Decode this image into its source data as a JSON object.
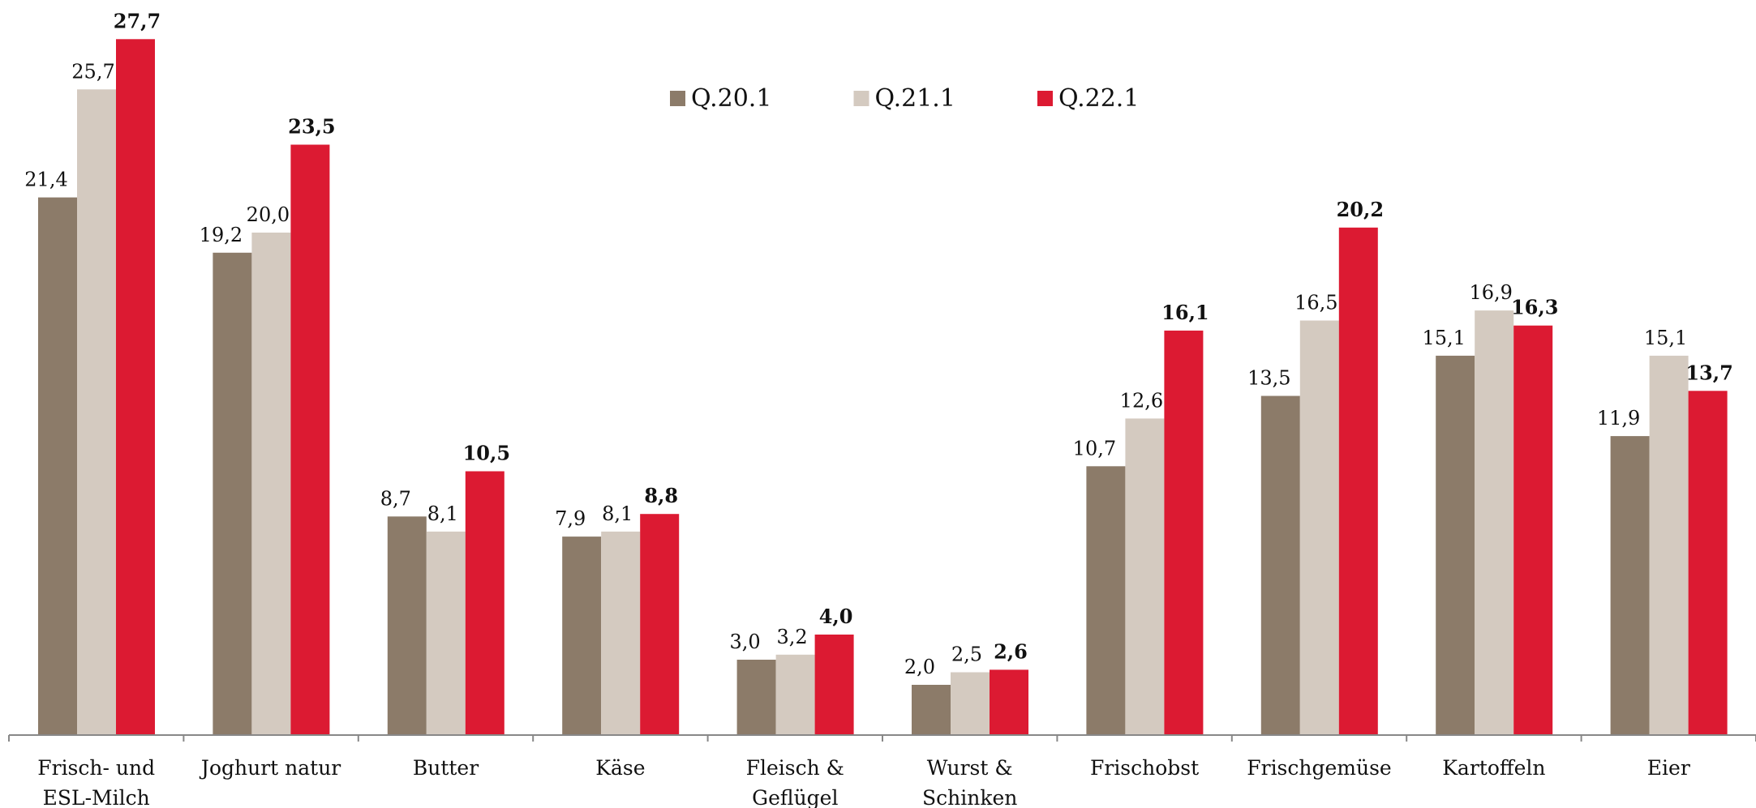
{
  "chart_data": {
    "type": "bar",
    "categories": [
      "Frisch- und ESL-Milch",
      "Joghurt natur",
      "Butter",
      "Käse",
      "Fleisch & Geflügel",
      "Wurst & Schinken",
      "Frischobst",
      "Frischgemüse",
      "Kartoffeln",
      "Eier"
    ],
    "series": [
      {
        "name": "Q.20.1",
        "color": "#8c7b69",
        "values": [
          21.4,
          19.2,
          8.7,
          7.9,
          3.0,
          2.0,
          10.7,
          13.5,
          15.1,
          11.9
        ],
        "value_labels": [
          "21,4",
          "19,2",
          "8,7",
          "7,9",
          "3,0",
          "2,0",
          "10,7",
          "13,5",
          "15,1",
          "11,9"
        ]
      },
      {
        "name": "Q.21.1",
        "color": "#d4cac0",
        "values": [
          25.7,
          20.0,
          8.1,
          8.1,
          3.2,
          2.5,
          12.6,
          16.5,
          16.9,
          15.1
        ],
        "value_labels": [
          "25,7",
          "20,0",
          "8,1",
          "8,1",
          "3,2",
          "2,5",
          "12,6",
          "16,5",
          "16,9",
          "15,1"
        ]
      },
      {
        "name": "Q.22.1",
        "color": "#dc1a32",
        "values": [
          27.7,
          23.5,
          10.5,
          8.8,
          4.0,
          2.6,
          16.1,
          20.2,
          16.3,
          13.7
        ],
        "value_labels": [
          "27,7",
          "23,5",
          "10,5",
          "8,8",
          "4,0",
          "2,6",
          "16,1",
          "20,2",
          "16,3",
          "13,7"
        ]
      }
    ]
  }
}
